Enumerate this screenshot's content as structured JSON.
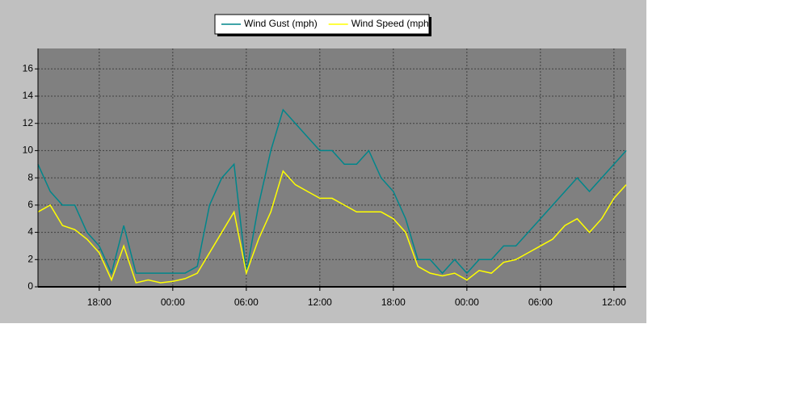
{
  "chart_data": {
    "type": "line",
    "x": [
      13,
      14,
      15,
      16,
      17,
      18,
      19,
      20,
      21,
      22,
      23,
      24,
      25,
      26,
      27,
      28,
      29,
      30,
      31,
      32,
      33,
      34,
      35,
      36,
      37,
      38,
      39,
      40,
      41,
      42,
      43,
      44,
      45,
      46,
      47,
      48,
      49,
      50,
      51,
      52,
      53,
      54,
      55,
      56,
      57,
      58,
      59,
      60,
      61
    ],
    "series": [
      {
        "name": "Wind Gust (mph)",
        "color": "#00868b",
        "values": [
          9,
          7,
          6,
          6,
          4,
          3,
          1,
          4.5,
          1,
          1,
          1,
          1,
          1,
          1.5,
          6,
          8,
          9,
          1,
          6,
          10,
          13,
          12,
          11,
          10,
          10,
          9,
          9,
          10,
          8,
          7,
          5,
          2,
          2,
          1,
          2,
          1,
          2,
          2,
          3,
          3,
          4,
          5,
          6,
          7,
          8,
          7,
          8,
          9,
          10
        ]
      },
      {
        "name": "Wind Speed (mph)",
        "color": "#ffff00",
        "values": [
          5.5,
          6,
          4.5,
          4.2,
          3.5,
          2.5,
          0.5,
          3,
          0.3,
          0.5,
          0.3,
          0.4,
          0.6,
          1,
          2.5,
          4,
          5.5,
          1,
          3.5,
          5.5,
          8.5,
          7.5,
          7,
          6.5,
          6.5,
          6,
          5.5,
          5.5,
          5.5,
          5,
          4,
          1.5,
          1,
          0.8,
          1,
          0.5,
          1.2,
          1,
          1.8,
          2,
          2.5,
          3,
          3.5,
          4.5,
          5,
          4,
          5,
          6.5,
          7.5
        ]
      }
    ],
    "xlim": [
      13,
      61
    ],
    "xticks": [
      {
        "value": 18,
        "label": "18:00"
      },
      {
        "value": 24,
        "label": "00:00"
      },
      {
        "value": 30,
        "label": "06:00"
      },
      {
        "value": 36,
        "label": "12:00"
      },
      {
        "value": 42,
        "label": "18:00"
      },
      {
        "value": 48,
        "label": "00:00"
      },
      {
        "value": 54,
        "label": "06:00"
      },
      {
        "value": 60,
        "label": "12:00"
      }
    ],
    "ylim": [
      0,
      17.5
    ],
    "yticks": [
      0,
      2,
      4,
      6,
      8,
      10,
      12,
      14,
      16
    ],
    "grid": true
  }
}
